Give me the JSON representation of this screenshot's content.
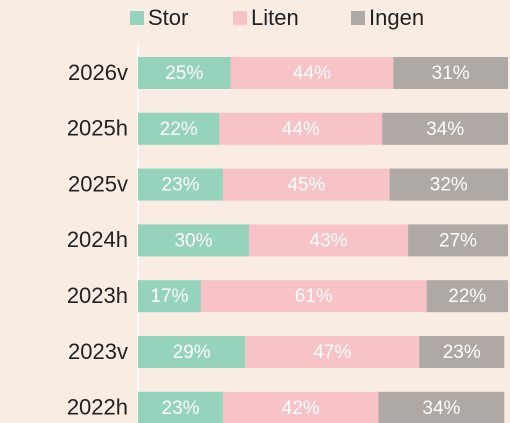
{
  "chart_data": {
    "type": "stacked_bar_horizontal",
    "categories": [
      "2026v",
      "2025h",
      "2025v",
      "2024h",
      "2023h",
      "2023v",
      "2022h"
    ],
    "series": [
      {
        "name": "Stor",
        "color": "#95d3bd",
        "values": [
          25,
          22,
          23,
          30,
          17,
          29,
          23
        ],
        "value_labels": [
          "25%",
          "22%",
          "23%",
          "30%",
          "17%",
          "29%",
          "23%"
        ]
      },
      {
        "name": "Liten",
        "color": "#f8c3c7",
        "values": [
          44,
          44,
          45,
          43,
          61,
          47,
          42
        ],
        "value_labels": [
          "44%",
          "44%",
          "45%",
          "43%",
          "61%",
          "47%",
          "42%"
        ]
      },
      {
        "name": "Ingen",
        "color": "#aea9a4",
        "values": [
          31,
          34,
          32,
          27,
          22,
          23,
          34
        ],
        "value_labels": [
          "31%",
          "34%",
          "32%",
          "27%",
          "22%",
          "23%",
          "34%"
        ]
      }
    ],
    "xlim": [
      0,
      100
    ],
    "legend": "top"
  }
}
